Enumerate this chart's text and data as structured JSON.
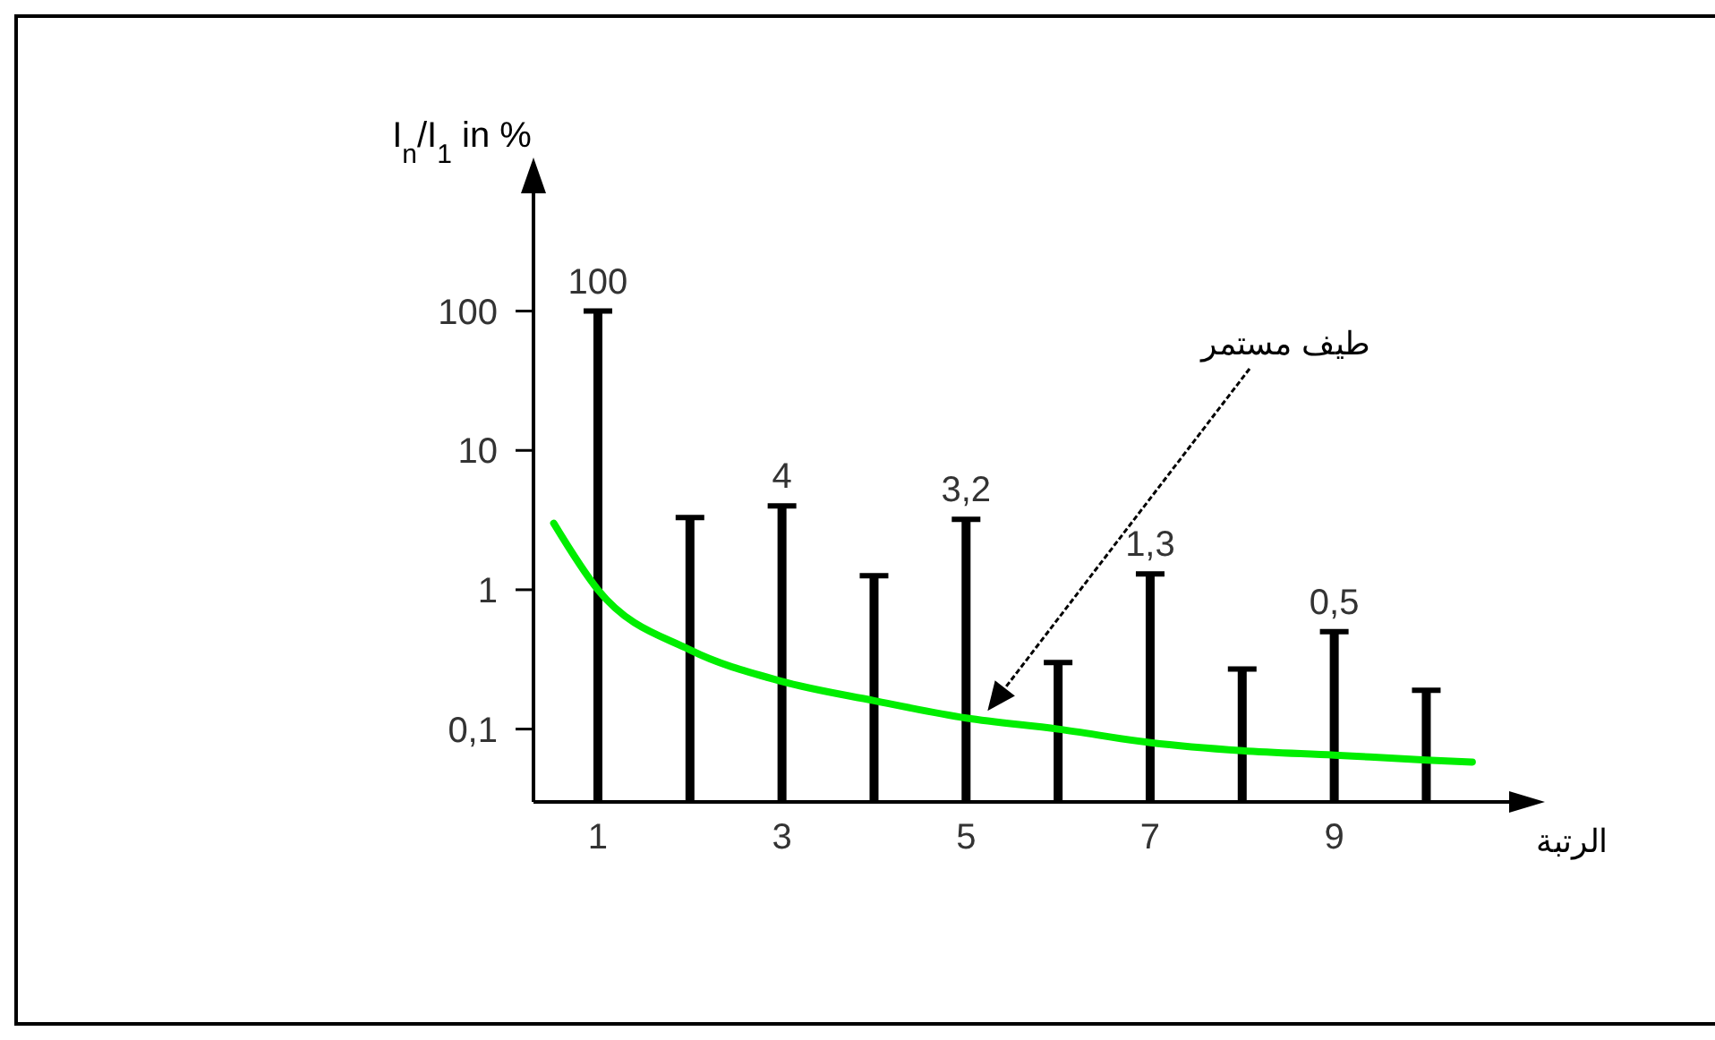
{
  "chart_data": {
    "type": "bar",
    "xlabel": "الرتبة",
    "ylabel": "I$_{n}$/I$_{1}$ in %",
    "log": "y",
    "x": [
      1,
      2,
      3,
      4,
      5,
      6,
      7,
      8,
      9,
      10
    ],
    "xlim": [
      0.3,
      10.9
    ],
    "xticks": [
      1,
      3,
      5,
      7,
      9
    ],
    "ylim": [
      0.03,
      700
    ],
    "yticks": [
      {
        "value": 0.1,
        "label": "0,1"
      },
      1,
      10,
      100
    ],
    "series": [
      {
        "color": "#000000",
        "values": [
          100,
          3.3,
          4,
          1.26,
          3.2,
          0.3,
          1.3,
          0.27,
          0.5,
          0.19
        ],
        "value_labels": [
          "100",
          null,
          "4",
          null,
          "3,2",
          null,
          "1,3",
          null,
          "0,5",
          null
        ]
      },
      {
        "type": "line",
        "color": "#00ee00",
        "x": [
          0.52,
          1,
          2,
          3,
          4,
          5,
          6,
          7,
          8,
          9,
          10,
          10.5
        ],
        "values": [
          3,
          1,
          0.37,
          0.22,
          0.16,
          0.12,
          0.1,
          0.08,
          0.07,
          0.065,
          0.06,
          0.058
        ]
      }
    ],
    "annotations": [
      "طيف مستمر"
    ],
    "grid": false
  }
}
